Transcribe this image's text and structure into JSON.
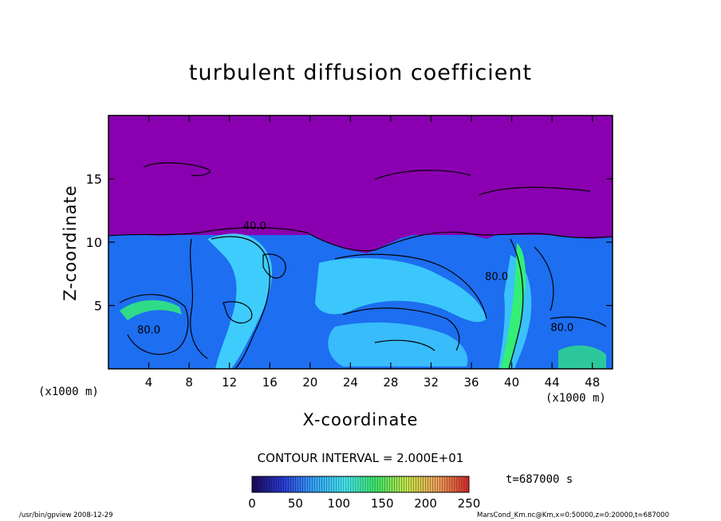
{
  "chart_data": {
    "type": "heatmap",
    "title": "turbulent diffusion coefficient",
    "xlabel": "X-coordinate",
    "ylabel": "Z-coordinate",
    "x_unit_left": "(x1000 m)",
    "x_unit_right": "(x1000 m)",
    "xlim": [
      0,
      50
    ],
    "ylim": [
      0,
      20
    ],
    "x_ticks": [
      4,
      8,
      12,
      16,
      20,
      24,
      28,
      32,
      36,
      40,
      44,
      48
    ],
    "y_ticks": [
      5,
      10,
      15
    ],
    "contour_labels": [
      {
        "text": "40.0",
        "x": 14.5,
        "z": 11.0
      },
      {
        "text": "80.0",
        "x": 4.0,
        "z": 2.8
      },
      {
        "text": "80.0",
        "x": 38.5,
        "z": 7.0
      },
      {
        "text": "80.0",
        "x": 45.0,
        "z": 3.0
      }
    ],
    "contour_interval_text": "CONTOUR INTERVAL = 2.000E+01",
    "colorbar": {
      "min": 0,
      "max": 250,
      "ticks": [
        0,
        50,
        100,
        150,
        200,
        250
      ],
      "colors": [
        "#1a0a5a",
        "#2a3ad8",
        "#36a6ff",
        "#45e8f0",
        "#3ee86a",
        "#c8e84a",
        "#f0a05a",
        "#d82a2a"
      ]
    },
    "time_label": "t=687000 s",
    "field_colors": {
      "upper_region": "#8a00b0",
      "mid_region": "#1d6ef0",
      "bright_plume": "#44ddff",
      "green_core": "#33ee77"
    }
  },
  "footer": {
    "left": "/usr/bin/gpview   2008-12-29",
    "right": "MarsCond_Km.nc@Km,x=0:50000,z=0:20000,t=687000"
  }
}
